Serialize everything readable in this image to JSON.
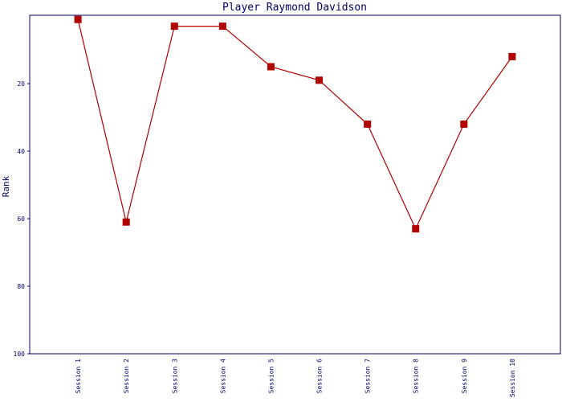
{
  "chart_data": {
    "type": "line",
    "title": "Player Raymond Davidson",
    "y_label": "Rank",
    "categories": [
      "Session 1",
      "Session 2",
      "Session 3",
      "Session 4",
      "Session 5",
      "Session 6",
      "Session 7",
      "Session 8",
      "Session 9",
      "Session 10"
    ],
    "series": [
      {
        "name": "Rank",
        "color": "#b00000",
        "values": [
          1,
          61,
          3,
          3,
          15,
          19,
          32,
          63,
          32,
          12
        ]
      }
    ],
    "ylim": [
      0,
      100
    ],
    "y_reversed": true,
    "yticks": [
      20,
      40,
      60,
      80,
      100
    ],
    "grid": false
  }
}
